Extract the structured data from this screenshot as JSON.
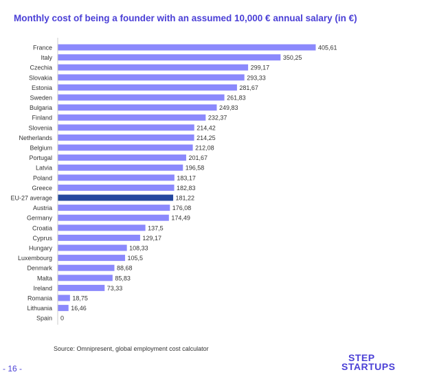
{
  "page": {
    "source": "Source: Omnipresent, global employment cost calculator",
    "page_number": "- 16 -",
    "logo": {
      "line1": "STEP",
      "line2": "STARTUPS"
    }
  },
  "chart_data": {
    "type": "bar",
    "orientation": "horizontal",
    "title": "Monthly cost of being a founder with an assumed 10,000 € annual salary (in €)",
    "xlabel": "",
    "ylabel": "",
    "xlim": [
      0,
      405.61
    ],
    "grid": false,
    "categories": [
      "France",
      "Italy",
      "Czechia",
      "Slovakia",
      "Estonia",
      "Sweden",
      "Bulgaria",
      "Finland",
      "Slovenia",
      "Netherlands",
      "Belgium",
      "Portugal",
      "Latvia",
      "Poland",
      "Greece",
      "EU-27 average",
      "Austria",
      "Germany",
      "Croatia",
      "Cyprus",
      "Hungary",
      "Luxembourg",
      "Denmark",
      "Malta",
      "Ireland",
      "Romania",
      "Lithuania",
      "Spain"
    ],
    "values": [
      405.61,
      350.25,
      299.17,
      293.33,
      281.67,
      261.83,
      249.83,
      232.37,
      214.42,
      214.25,
      212.08,
      201.67,
      196.58,
      183.17,
      182.83,
      181.22,
      176.08,
      174.49,
      137.5,
      129.17,
      108.33,
      105.5,
      88.68,
      85.83,
      73.33,
      18.75,
      16.46,
      0
    ],
    "value_labels": [
      "405,61",
      "350,25",
      "299,17",
      "293,33",
      "281,67",
      "261,83",
      "249,83",
      "232,37",
      "214,42",
      "214,25",
      "212,08",
      "201,67",
      "196,58",
      "183,17",
      "182,83",
      "181,22",
      "176,08",
      "174,49",
      "137,5",
      "129,17",
      "108,33",
      "105,5",
      "88,68",
      "85,83",
      "73,33",
      "18,75",
      "16,46",
      "0"
    ],
    "highlight": "EU-27 average",
    "colors": {
      "bar": "#8b89fc",
      "highlight": "#25479f",
      "axis": "#cccccc"
    }
  }
}
